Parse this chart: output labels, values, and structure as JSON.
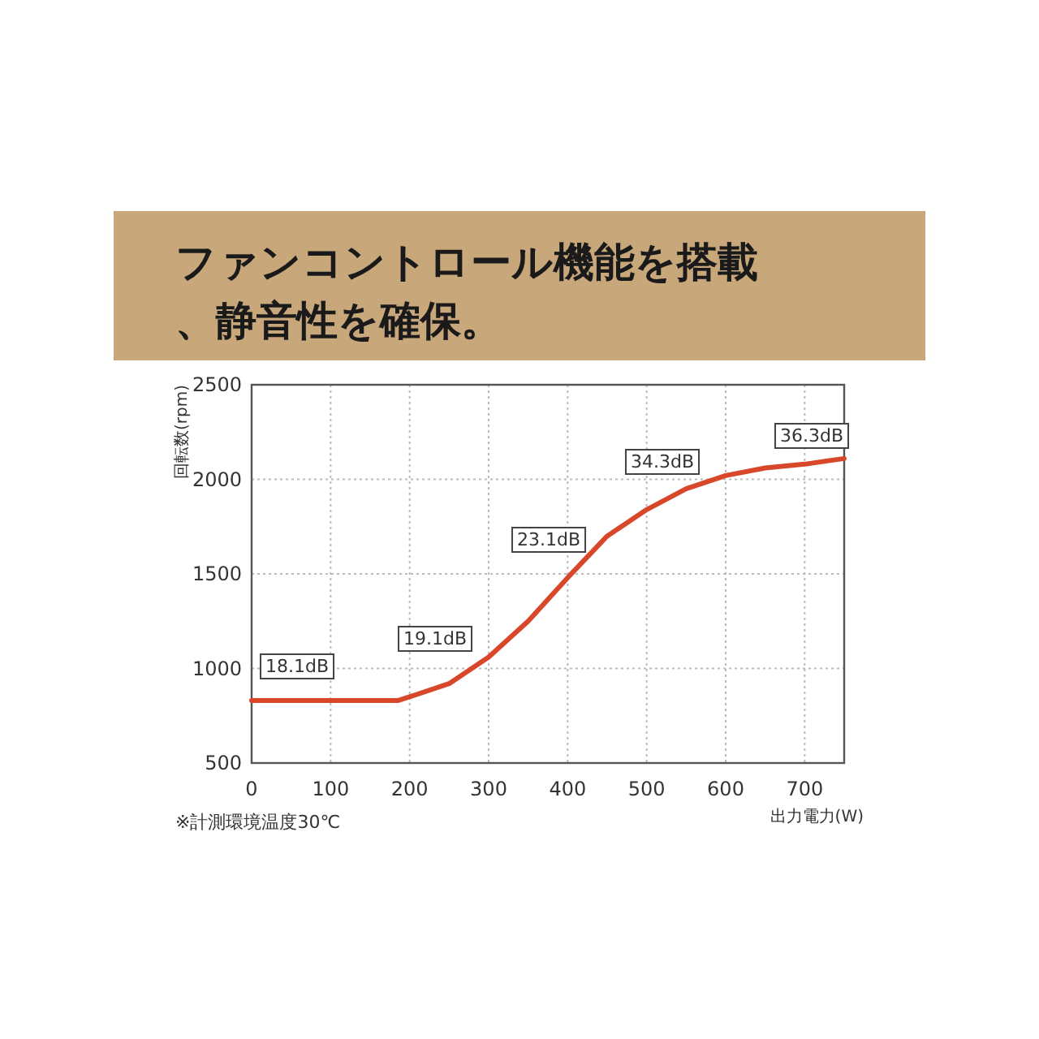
{
  "chart_data": {
    "type": "line",
    "title": "ファンコントロール機能を搭載、静音性を確保。",
    "xlabel": "出力電力(W)",
    "ylabel": "回転数(rpm)",
    "x": [
      0,
      100,
      185,
      200,
      250,
      300,
      350,
      400,
      450,
      500,
      550,
      600,
      650,
      700,
      750
    ],
    "series": [
      {
        "color": "#d9472b",
        "values": [
          830,
          830,
          830,
          850,
          920,
          1060,
          1250,
          1480,
          1700,
          1840,
          1950,
          2020,
          2060,
          2080,
          2110
        ]
      }
    ],
    "xlim": [
      0,
      750
    ],
    "ylim": [
      500,
      2500
    ],
    "xticks": [
      0,
      100,
      200,
      300,
      400,
      500,
      600,
      700
    ],
    "yticks": [
      500,
      1000,
      1500,
      2000,
      2500
    ],
    "grid": true,
    "marker": "none",
    "line_style": "solid",
    "annotations": [
      "18.1dB",
      "19.1dB",
      "23.1dB",
      "34.3dB",
      "36.3dB",
      "※計測環境温度30℃"
    ]
  }
}
